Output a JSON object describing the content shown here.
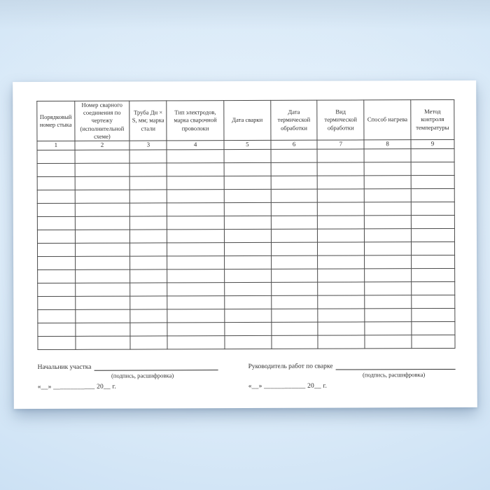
{
  "document": {
    "kind": "blank-welding-log-form",
    "table": {
      "columns": [
        {
          "number": "1",
          "label": "Порядковый номер стыка"
        },
        {
          "number": "2",
          "label": "Номер сварного соединения по чертежу (исполнительной схеме)"
        },
        {
          "number": "3",
          "label": "Труба Дн × S, мм; марка стали"
        },
        {
          "number": "4",
          "label": "Тип электродов, марка сварочной проволоки"
        },
        {
          "number": "5",
          "label": "Дата сварки"
        },
        {
          "number": "6",
          "label": "Дата термической обработки"
        },
        {
          "number": "7",
          "label": "Вид термической обработки"
        },
        {
          "number": "8",
          "label": "Способ нагрева"
        },
        {
          "number": "9",
          "label": "Метод контроля температуры"
        }
      ],
      "empty_row_count": 15,
      "cell_values": []
    },
    "footer": {
      "left": {
        "title": "Начальник участка",
        "signature_caption": "(подпись, расшифровка)",
        "date_line": "«__» ____________ 20__ г."
      },
      "right": {
        "title": "Руководитель работ по сварке",
        "signature_caption": "(подпись, расшифровка)",
        "date_line": "«__» ____________ 20__ г."
      }
    },
    "colors": {
      "paper": "#ffffff",
      "table_border": "#4a4a4a",
      "text": "#303030",
      "background_blue": "#cfe3f5"
    }
  }
}
